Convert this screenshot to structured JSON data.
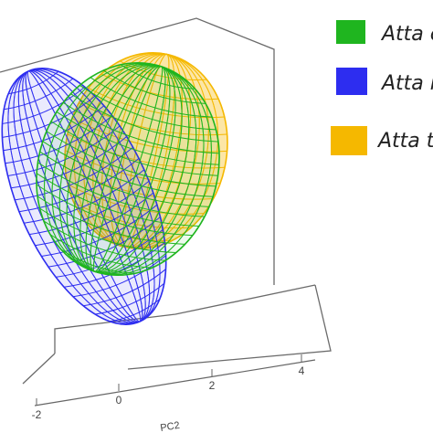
{
  "chart_data": {
    "type": "scatter",
    "subtype": "3d-confidence-ellipsoids",
    "title": "",
    "xlabel": "PC2",
    "x_ticks": [
      "-2",
      "0",
      "2",
      "4"
    ],
    "legend_placement": "right",
    "grid": false,
    "series": [
      {
        "name": "Atta c",
        "color": "#1fb51f",
        "center_pc2": 1.3,
        "relative_extent": 1.0
      },
      {
        "name": "Atta r",
        "color": "#2d2df0",
        "center_pc2": -0.6,
        "relative_extent": 1.1
      },
      {
        "name": "Atta te",
        "color": "#f5b800",
        "center_pc2": 1.7,
        "relative_extent": 0.85
      }
    ]
  },
  "colors": {
    "box": "#666666",
    "text": "#222222"
  }
}
